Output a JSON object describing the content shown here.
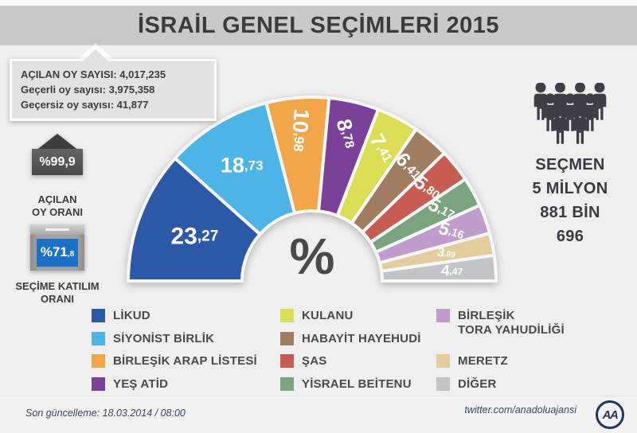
{
  "title": "İSRAİL GENEL SEÇİMLERİ 2015",
  "stats_box": {
    "lines": [
      "AÇILAN OY SAYISI: 4,017,235",
      "Geçerli oy sayısı: 3,975,358",
      "Geçersiz oy sayısı: 41,877"
    ]
  },
  "left_panel": {
    "opened_rate": {
      "value": "%99,9",
      "label": [
        "AÇILAN",
        "OY ORANI"
      ]
    },
    "turnout": {
      "value_int": "%71",
      "value_frac": ",8",
      "label": [
        "SEÇİME KATILIM",
        "ORANI"
      ]
    }
  },
  "voters": {
    "lines": [
      "SEÇMEN",
      "5 MİLYON",
      "881 BİN",
      "696"
    ]
  },
  "chart_data": {
    "type": "half-donut",
    "title": "İSRAİL GENEL SEÇİMLERİ 2015",
    "center_label": "%",
    "unit": "percent",
    "start_angle_deg": 180,
    "end_angle_deg": 0,
    "legend_position": "bottom",
    "series": [
      {
        "name": "LİKUD",
        "value": 23.27,
        "label": "23,27",
        "color": "#2c58a8"
      },
      {
        "name": "SİYONİST BİRLİK",
        "value": 18.73,
        "label": "18,73",
        "color": "#4cb4e7"
      },
      {
        "name": "BİRLEŞİK ARAP LİSTESİ",
        "value": 10.98,
        "label": "10,98",
        "color": "#f3a648"
      },
      {
        "name": "YEŞ ATİD",
        "value": 8.78,
        "label": "8,78",
        "color": "#7a4199"
      },
      {
        "name": "KULANU",
        "value": 7.41,
        "label": "7,41",
        "color": "#d9de55"
      },
      {
        "name": "HABAYİT HAYEHUDİ",
        "value": 6.41,
        "label": "6,41",
        "color": "#9e7d61"
      },
      {
        "name": "ŞAS",
        "value": 5.8,
        "label": "5,80",
        "color": "#c95c50"
      },
      {
        "name": "YİSRAEL BEİTENU",
        "value": 5.17,
        "label": "5,17",
        "color": "#7aa37f"
      },
      {
        "name": "BİRLEŞİK TORA YAHUDİLİĞİ",
        "value": 5.16,
        "label": "5,16",
        "color": "#c09ccd"
      },
      {
        "name": "MERETZ",
        "value": 3.89,
        "label": "3,89",
        "color": "#e3cd9c"
      },
      {
        "name": "DİĞER",
        "value": 4.47,
        "label": "4,47",
        "color": "#c2c5c8"
      }
    ]
  },
  "legend": {
    "columns": [
      [
        {
          "lines": [
            "LİKUD"
          ],
          "color": "#2c58a8"
        },
        {
          "lines": [
            "SİYONİST BİRLİK"
          ],
          "color": "#4cb4e7"
        },
        {
          "lines": [
            "BİRLEŞİK ARAP LİSTESİ"
          ],
          "color": "#f3a648"
        },
        {
          "lines": [
            "YEŞ ATİD"
          ],
          "color": "#7a4199"
        }
      ],
      [
        {
          "lines": [
            "KULANU"
          ],
          "color": "#d9de55"
        },
        {
          "lines": [
            "HABAYİT HAYEHUDİ"
          ],
          "color": "#9e7d61"
        },
        {
          "lines": [
            "ŞAS"
          ],
          "color": "#c95c50"
        },
        {
          "lines": [
            "YİSRAEL BEİTENU"
          ],
          "color": "#7aa37f"
        }
      ],
      [
        {
          "lines": [
            "BİRLEŞİK",
            "TORA YAHUDİLİĞİ"
          ],
          "color": "#c09ccd"
        },
        {
          "lines": [
            "MERETZ"
          ],
          "color": "#e3cd9c"
        },
        {
          "lines": [
            "DİĞER"
          ],
          "color": "#c2c5c8"
        }
      ]
    ]
  },
  "footer": {
    "updated": "Son güncelleme: 18.03.2014 / 08:00",
    "twitter": "twitter.com/anadoluajansi",
    "logo_text": "AA"
  }
}
